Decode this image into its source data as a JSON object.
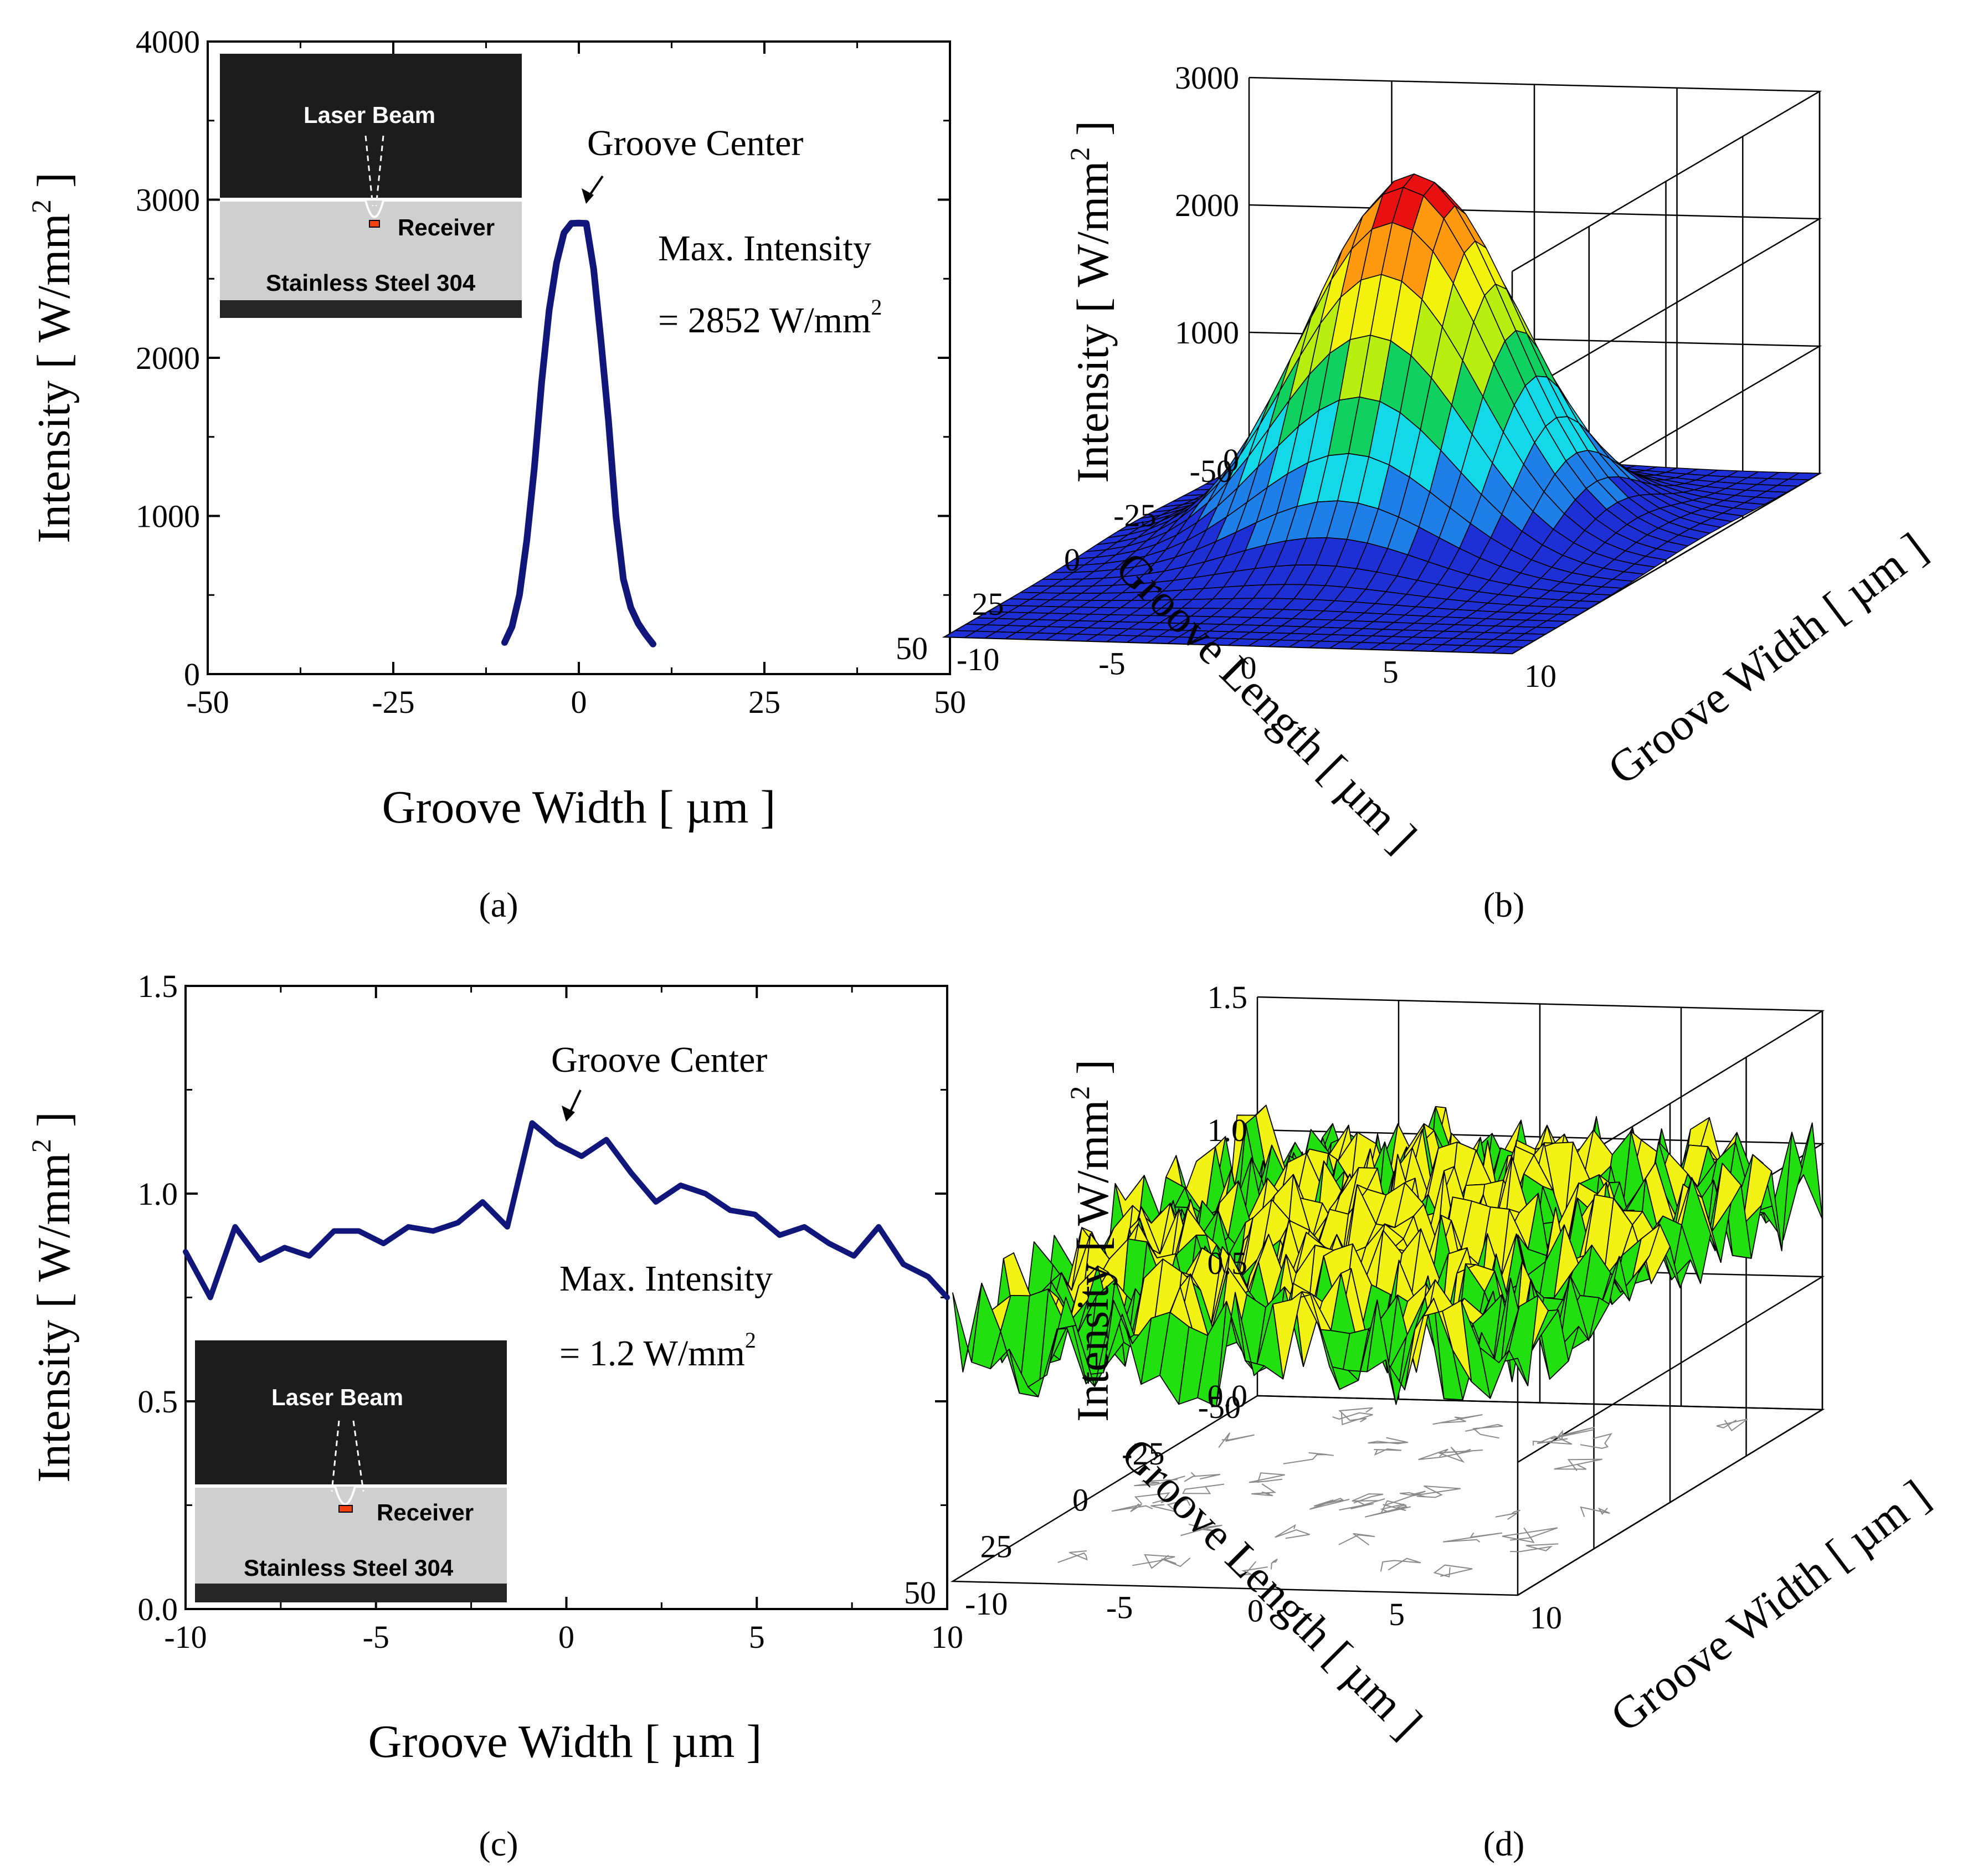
{
  "panel_a": {
    "caption": "(a)",
    "ylabel": "Intensity [ W/mm",
    "ylabel_sup": "2",
    "ylabel_close": " ]",
    "xlabel": "Groove Width [ µm ]",
    "xticks": [
      "-50",
      "-25",
      "0",
      "25",
      "50"
    ],
    "yticks": [
      "0",
      "1000",
      "2000",
      "3000",
      "4000"
    ],
    "annotation_center": "Groove Center",
    "annotation_max_1": "Max. Intensity",
    "annotation_max_2": "= 2852 W/mm",
    "annotation_max_sup": "2",
    "inset": {
      "beam": "Laser Beam",
      "receiver": "Receiver",
      "material": "Stainless Steel 304"
    }
  },
  "panel_b": {
    "caption": "(b)",
    "zlabel": "Intensity [ W/mm",
    "zlabel_sup": "2",
    "zlabel_close": " ]",
    "xlabel": "Groove Length [ µm ]",
    "ylabel": "Groove Width [ µm ]",
    "zticks": [
      "0",
      "1000",
      "2000",
      "3000"
    ],
    "length_ticks": [
      "-50",
      "-25",
      "0",
      "25",
      "50"
    ],
    "width_ticks": [
      "-10",
      "-5",
      "0",
      "5",
      "10"
    ]
  },
  "panel_c": {
    "caption": "(c)",
    "ylabel": "Intensity [ W/mm",
    "ylabel_sup": "2",
    "ylabel_close": " ]",
    "xlabel": "Groove Width [ µm ]",
    "xticks": [
      "-10",
      "-5",
      "0",
      "5",
      "10"
    ],
    "yticks": [
      "0.0",
      "0.5",
      "1.0",
      "1.5"
    ],
    "annotation_center": "Groove Center",
    "annotation_max_1": "Max. Intensity",
    "annotation_max_2": "= 1.2 W/mm",
    "annotation_max_sup": "2",
    "inset": {
      "beam": "Laser Beam",
      "receiver": "Receiver",
      "material": "Stainless Steel 304"
    }
  },
  "panel_d": {
    "caption": "(d)",
    "zlabel": "Intensity [ W/mm",
    "zlabel_sup": "2",
    "zlabel_close": " ]",
    "xlabel": "Groove Length [ µm ]",
    "ylabel": "Groove Width [ µm ]",
    "zticks": [
      "0.0",
      "0.5",
      "1.0",
      "1.5"
    ],
    "length_ticks": [
      "-50",
      "-25",
      "0",
      "25",
      "50"
    ],
    "width_ticks": [
      "-10",
      "-5",
      "0",
      "5",
      "10"
    ]
  },
  "colors": {
    "line": "#10167a",
    "surface_base": "#1f2fd6",
    "surface_levels": [
      "#1f2fd6",
      "#1e7fe8",
      "#12d8e8",
      "#10d060",
      "#b8ee10",
      "#f2f20c",
      "#ff9a10",
      "#e81010"
    ],
    "noise_green": "#22e010",
    "noise_yellow": "#f2f214"
  },
  "chart_data": [
    {
      "panel": "a",
      "type": "line",
      "title": "",
      "xlabel": "Groove Width [ µm ]",
      "ylabel": "Intensity [ W/mm2 ]",
      "xlim": [
        -50,
        50
      ],
      "ylim": [
        0,
        4000
      ],
      "series": [
        {
          "x": [
            -10,
            -9,
            -8,
            -7,
            -6,
            -5,
            -4,
            -3,
            -2,
            -1,
            0,
            1,
            2,
            3,
            4,
            5,
            6,
            7,
            8,
            9,
            10
          ],
          "values": [
            200,
            300,
            500,
            850,
            1300,
            1850,
            2300,
            2600,
            2790,
            2850,
            2852,
            2850,
            2560,
            2100,
            1600,
            1000,
            600,
            420,
            320,
            250,
            190
          ]
        }
      ]
    },
    {
      "panel": "b",
      "type": "surface",
      "xlabel": "Groove Width [ µm ]",
      "ylabel": "Groove Length [ µm ]",
      "zlabel": "Intensity [ W/mm2 ]",
      "xlim": [
        -10,
        10
      ],
      "ylim": [
        -50,
        50
      ],
      "zlim": [
        0,
        3000
      ],
      "peak": {
        "width": 0,
        "length": -10,
        "intensity": 2852
      }
    },
    {
      "panel": "c",
      "type": "line",
      "title": "",
      "xlabel": "Groove Width [ µm ]",
      "ylabel": "Intensity [ W/mm2 ]",
      "xlim": [
        -10,
        10
      ],
      "ylim": [
        0,
        1.5
      ],
      "series": [
        {
          "x": [
            -10,
            -9.35,
            -8.7,
            -8.05,
            -7.4,
            -6.75,
            -6.1,
            -5.45,
            -4.8,
            -4.15,
            -3.5,
            -2.85,
            -2.2,
            -1.55,
            -0.9,
            -0.25,
            0.4,
            1.05,
            1.7,
            2.35,
            3.0,
            3.65,
            4.3,
            4.95,
            5.6,
            6.25,
            6.9,
            7.55,
            8.2,
            8.85,
            9.5,
            10
          ],
          "values": [
            0.86,
            0.75,
            0.92,
            0.84,
            0.87,
            0.85,
            0.91,
            0.91,
            0.88,
            0.92,
            0.91,
            0.93,
            0.98,
            0.92,
            1.17,
            1.12,
            1.09,
            1.13,
            1.05,
            0.98,
            1.02,
            1.0,
            0.96,
            0.95,
            0.9,
            0.92,
            0.88,
            0.85,
            0.92,
            0.83,
            0.8,
            0.75
          ]
        }
      ]
    },
    {
      "panel": "d",
      "type": "surface",
      "xlabel": "Groove Width [ µm ]",
      "ylabel": "Groove Length [ µm ]",
      "zlabel": "Intensity [ W/mm2 ]",
      "xlim": [
        -10,
        10
      ],
      "ylim": [
        -50,
        50
      ],
      "zlim": [
        0,
        1.5
      ],
      "peak": {
        "intensity": 1.2
      }
    }
  ]
}
